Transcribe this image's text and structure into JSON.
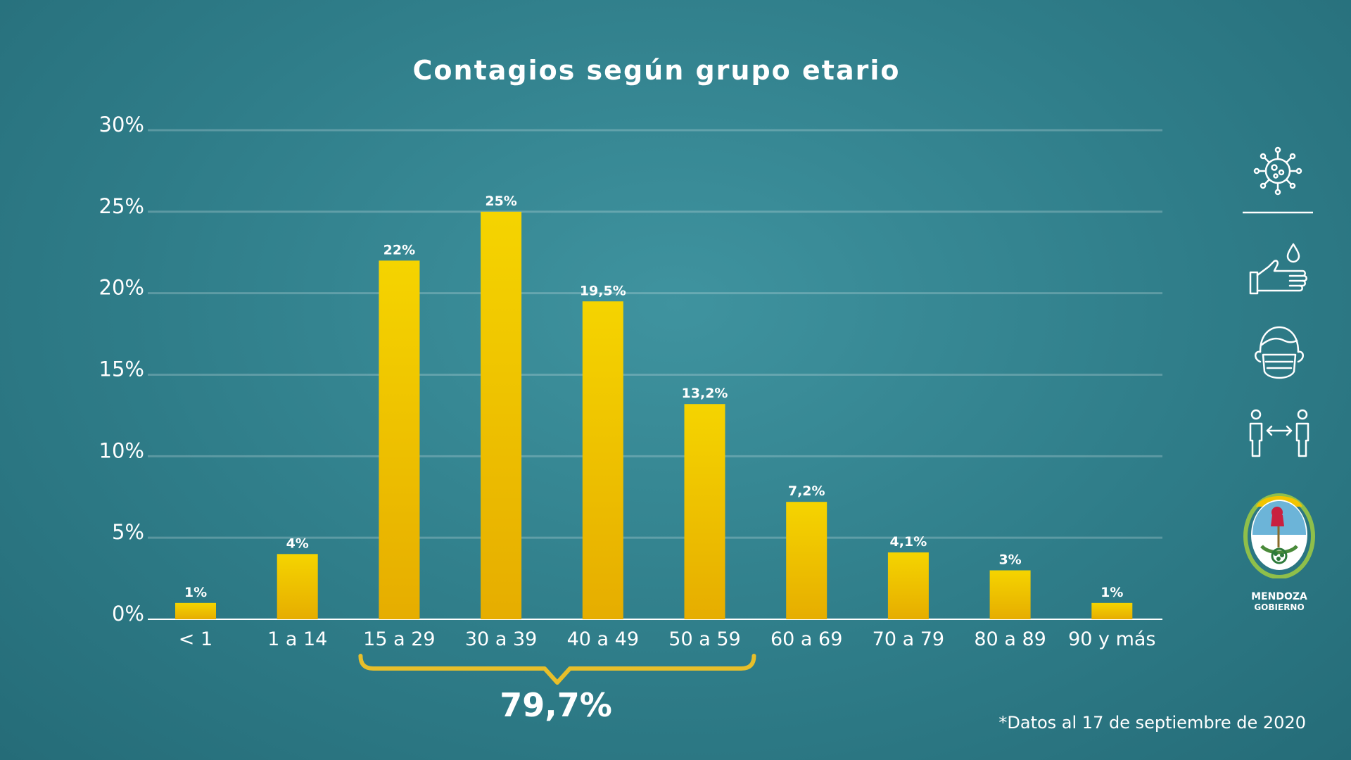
{
  "chart_data": {
    "type": "bar",
    "title": "Contagios según grupo etario",
    "categories": [
      "< 1",
      "1 a 14",
      "15 a 29",
      "30 a 39",
      "40 a 49",
      "50 a 59",
      "60 a 69",
      "70 a 79",
      "80 a 89",
      "90 y más"
    ],
    "values": [
      1,
      4,
      22,
      25,
      19.5,
      13.2,
      7.2,
      4.1,
      3,
      1
    ],
    "data_labels": [
      "1%",
      "4%",
      "22%",
      "25%",
      "19,5%",
      "13,2%",
      "7,2%",
      "4,1%",
      "3%",
      "1%"
    ],
    "yticks": [
      "0%",
      "5%",
      "10%",
      "15%",
      "20%",
      "25%",
      "30%"
    ],
    "ylim": [
      0,
      30
    ],
    "grid": true,
    "bar_color_top": "#f5d400",
    "bar_color_bottom": "#e6ad00",
    "bracket": {
      "from_category": "15 a 29",
      "to_category": "50 a 59",
      "label": "79,7%",
      "color": "#e8bf2a"
    }
  },
  "footnote": "*Datos al 17 de septiembre de 2020",
  "sidebar": {
    "icons": [
      "virus-icon",
      "handwash-icon",
      "face-mask-icon",
      "social-distance-icon"
    ],
    "logo": {
      "name": "mendoza-government-logo",
      "line1": "MENDOZA",
      "line2": "GOBIERNO"
    }
  }
}
